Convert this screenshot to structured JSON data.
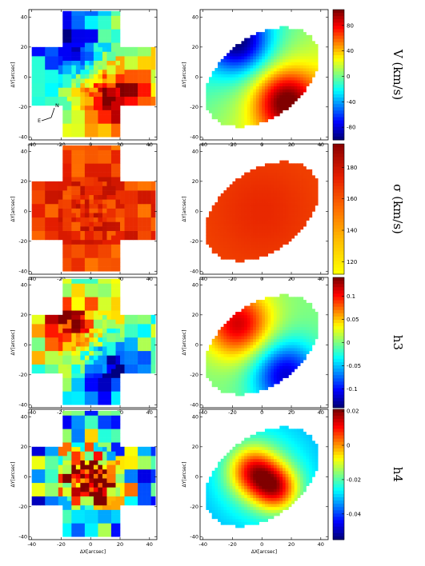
{
  "figure": {
    "x_axis_label": "ΔX[arcsec]",
    "y_axis_label": "ΔY[arcsec]",
    "compass": {
      "east": "E",
      "north": "N"
    }
  },
  "chart_data": [
    {
      "type": "heatmap",
      "quantity": "V (km/s)",
      "xlim": [
        -42,
        45
      ],
      "ylim": [
        -42,
        45
      ],
      "x_ticks": [
        -40,
        -20,
        0,
        20,
        40
      ],
      "y_ticks": [
        -40,
        -20,
        0,
        20,
        40
      ],
      "colorbar": {
        "range": [
          -100,
          105
        ],
        "ticks": [
          "-80",
          "-40",
          "0",
          "40",
          "80"
        ],
        "tick_values": [
          -80,
          -40,
          0,
          40,
          80
        ]
      },
      "pattern": {
        "pos_center": [
          16,
          -16
        ],
        "neg_center": [
          -16,
          24
        ],
        "smooth_pos_center": [
          16,
          -18
        ],
        "smooth_neg_center": [
          -16,
          22
        ]
      }
    },
    {
      "type": "heatmap",
      "quantity": "σ (km/s)",
      "xlim": [
        -42,
        45
      ],
      "ylim": [
        -42,
        45
      ],
      "x_ticks": [
        -40,
        -20,
        0,
        20,
        40
      ],
      "y_ticks": [
        -40,
        -20,
        0,
        20,
        40
      ],
      "colorbar": {
        "range": [
          112,
          195
        ],
        "ticks": [
          "120",
          "140",
          "160",
          "180"
        ],
        "tick_values": [
          120,
          140,
          160,
          180
        ]
      }
    },
    {
      "type": "heatmap",
      "quantity": "h3",
      "xlim": [
        -42,
        45
      ],
      "ylim": [
        -42,
        45
      ],
      "x_ticks": [
        -40,
        -20,
        0,
        20,
        40
      ],
      "y_ticks": [
        -40,
        -20,
        0,
        20,
        40
      ],
      "colorbar": {
        "range": [
          -0.14,
          0.14
        ],
        "ticks": [
          "0.1",
          "0.05",
          "0",
          "-0.05",
          "-0.1"
        ],
        "tick_values": [
          0.1,
          0.05,
          0,
          -0.05,
          -0.1
        ]
      }
    },
    {
      "type": "heatmap",
      "quantity": "h4",
      "xlim": [
        -42,
        45
      ],
      "ylim": [
        -42,
        45
      ],
      "x_ticks": [
        -40,
        -20,
        0,
        20,
        40
      ],
      "y_ticks": [
        -40,
        -20,
        0,
        20,
        40
      ],
      "colorbar": {
        "range": [
          -0.055,
          0.021
        ],
        "ticks": [
          "0.02",
          "0",
          "-0.02",
          "-0.04"
        ],
        "tick_values": [
          0.02,
          0,
          -0.02,
          -0.04
        ]
      }
    }
  ]
}
